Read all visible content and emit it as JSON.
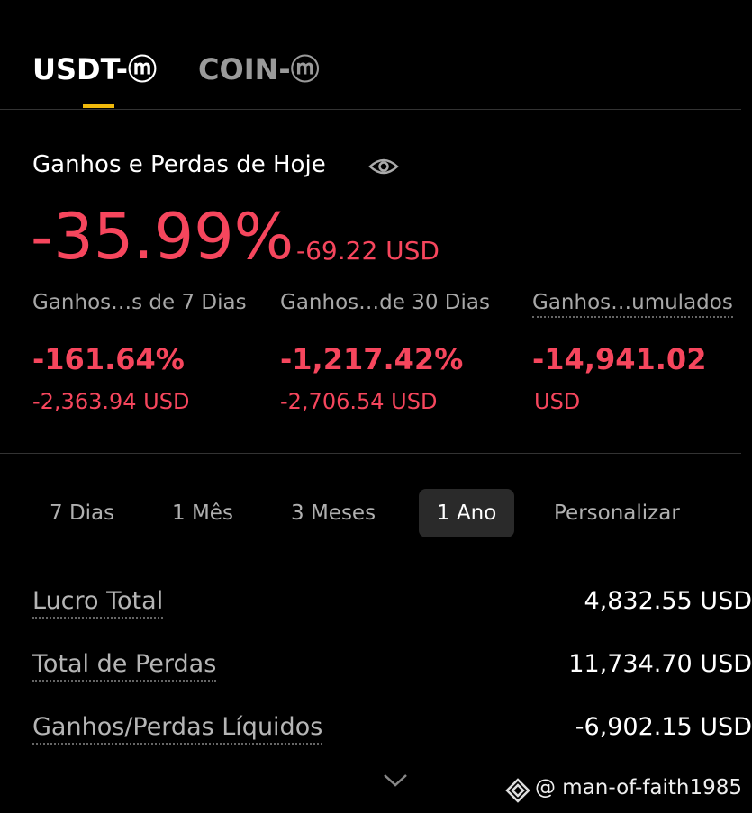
{
  "tabs": [
    "USDT-ⓜ",
    "COIN-ⓜ"
  ],
  "today": {
    "title": "Ganhos e Perdas de Hoje",
    "percent": "-35.99%",
    "amount": "-69.22 USD"
  },
  "stats": [
    {
      "label": "Ganhos…s de 7 Dias",
      "percent": "-161.64%",
      "amount": "-2,363.94 USD"
    },
    {
      "label": "Ganhos…de 30 Dias",
      "percent": "-1,217.42%",
      "amount": "-2,706.54 USD"
    },
    {
      "label": "Ganhos…umulados",
      "percent": "-14,941.02",
      "amount": "USD"
    }
  ],
  "periods": [
    "7 Dias",
    "1 Mês",
    "3 Meses",
    "1 Ano",
    "Personalizar"
  ],
  "selected_period": 3,
  "summary": [
    {
      "label": "Lucro Total",
      "value": "4,832.55 USD"
    },
    {
      "label": "Total de Perdas",
      "value": "11,734.70 USD"
    },
    {
      "label": "Ganhos/Perdas Líquidos",
      "value": "-6,902.15 USD"
    }
  ],
  "watermark": "@ man-of-faith1985"
}
